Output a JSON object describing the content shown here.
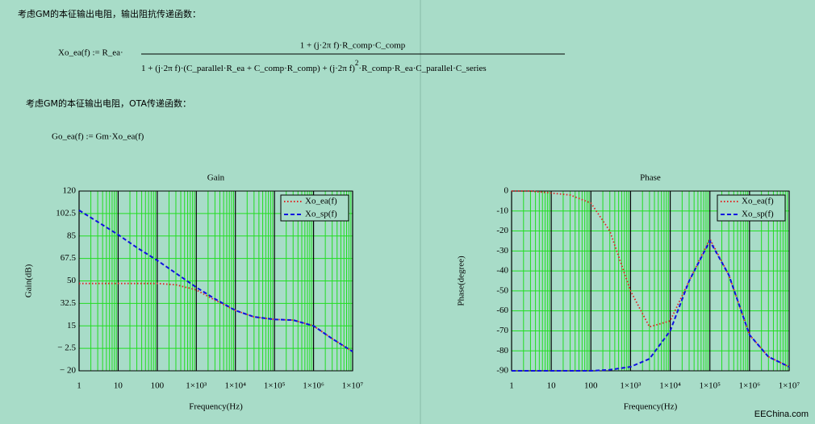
{
  "header": {
    "line1": "考虑GM的本征输出电阻，输出阻抗传递函数：",
    "formula1": {
      "lhs": "Xo_ea(f) := R_ea·",
      "numerator": "1 + (j·2π f)·R_comp·C_comp",
      "denominator_a": "1 + (j·2π f)·(C_parallel·R_ea + C_comp·R_comp) + (j·2π f)",
      "denominator_exp": "2",
      "denominator_b": "·R_comp·R_ea·C_parallel·C_series"
    },
    "line2": "考虑GM的本征输出电阻，OTA传递函数：",
    "formula2": "Go_ea(f) := Gm·Xo_ea(f)"
  },
  "watermark": "EEChina.com",
  "chart_data": [
    {
      "type": "line",
      "title": "Gain",
      "x_label": "Frequency(Hz)",
      "y_label": "Gain(dB)",
      "log_x": true,
      "grid": true,
      "legend": "upper-right",
      "x": [
        1,
        3,
        10,
        30,
        100,
        300,
        1000,
        3000,
        10000,
        30000,
        100000,
        300000,
        1000000,
        3000000,
        10000000
      ],
      "series": [
        {
          "name": "Xo_ea(f)",
          "color": "#e02020",
          "values": [
            48,
            48,
            48,
            48,
            48,
            47,
            43,
            35,
            27,
            22,
            20,
            19.5,
            15,
            5,
            -5
          ]
        },
        {
          "name": "Xo_sp(f)",
          "color": "#1010e0",
          "values": [
            105,
            96,
            86,
            76,
            66,
            56,
            45,
            36,
            27,
            22,
            20,
            19.5,
            15,
            5,
            -5
          ]
        }
      ],
      "xlim": [
        1,
        10000000
      ],
      "xticks": [
        1,
        10,
        100,
        {
          "value": 1000,
          "label": "1×10³"
        },
        {
          "value": 10000,
          "label": "1×10⁴"
        },
        {
          "value": 100000,
          "label": "1×10⁵"
        },
        {
          "value": 1000000,
          "label": "1×10⁶"
        },
        {
          "value": 10000000,
          "label": "1×10⁷"
        }
      ],
      "ylim": [
        -20,
        120
      ],
      "yticks": [
        {
          "value": -20,
          "label": "− 20"
        },
        {
          "value": -2.5,
          "label": "− 2.5"
        },
        15,
        32.5,
        50,
        67.5,
        85,
        102.5,
        120
      ]
    },
    {
      "type": "line",
      "title": "Phase",
      "x_label": "Frequency(Hz)",
      "y_label": "Phase(degree)",
      "log_x": true,
      "grid": true,
      "legend": "upper-right",
      "x": [
        1,
        3,
        10,
        30,
        100,
        300,
        1000,
        3000,
        10000,
        30000,
        100000,
        300000,
        1000000,
        3000000,
        10000000
      ],
      "series": [
        {
          "name": "Xo_ea(f)",
          "color": "#e02020",
          "values": [
            0,
            0,
            -1,
            -2,
            -6,
            -20,
            -50,
            -68,
            -65,
            -45,
            -24,
            -42,
            -72,
            -83,
            -88
          ]
        },
        {
          "name": "Xo_sp(f)",
          "color": "#1010e0",
          "values": [
            -90,
            -90,
            -90,
            -90,
            -90,
            -89.5,
            -88,
            -84,
            -70,
            -45,
            -25,
            -42,
            -72,
            -83,
            -88
          ]
        }
      ],
      "xlim": [
        1,
        10000000
      ],
      "xticks": [
        1,
        10,
        100,
        {
          "value": 1000,
          "label": "1×10³"
        },
        {
          "value": 10000,
          "label": "1×10⁴"
        },
        {
          "value": 100000,
          "label": "1×10⁵"
        },
        {
          "value": 1000000,
          "label": "1×10⁶"
        },
        {
          "value": 10000000,
          "label": "1×10⁷"
        }
      ],
      "ylim": [
        -90,
        0
      ],
      "yticks": [
        -90,
        -80,
        -70,
        -60,
        -50,
        -40,
        -30,
        -20,
        -10,
        0
      ]
    }
  ]
}
